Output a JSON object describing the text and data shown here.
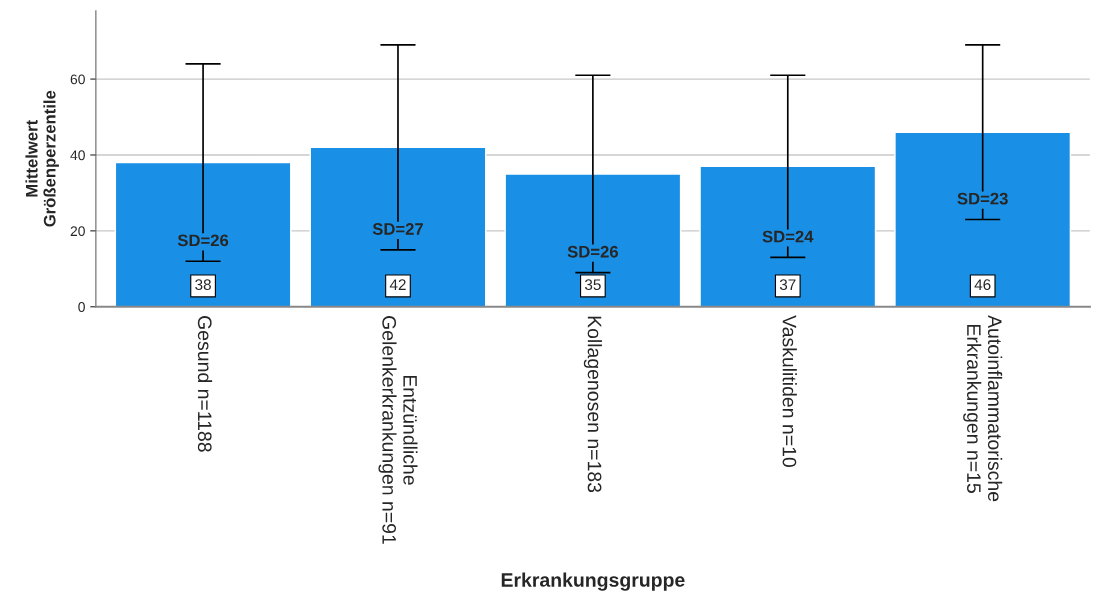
{
  "chart_data": {
    "type": "bar",
    "xlabel": "Erkrankungsgruppe",
    "ylabel": "Mittelwert\nGrößenperzentile",
    "categories": [
      "Gesund n=1188",
      "Entzündliche\nGelenkerkrankungen n=91",
      "Kollagenosen n=183",
      "Vaskulitiden n=10",
      "Autoinflammatorische\nErkrankungen n=15"
    ],
    "values": [
      38,
      42,
      35,
      37,
      46
    ],
    "errors": [
      26,
      27,
      26,
      24,
      23
    ],
    "color": "#1990e6",
    "data_labels": true,
    "annotations": [
      "SD=26",
      "SD=27",
      "SD=26",
      "SD=24",
      "SD=23"
    ],
    "ylim": [
      0,
      78
    ],
    "yticks": [
      0,
      20,
      40,
      60
    ],
    "grid": "y"
  }
}
